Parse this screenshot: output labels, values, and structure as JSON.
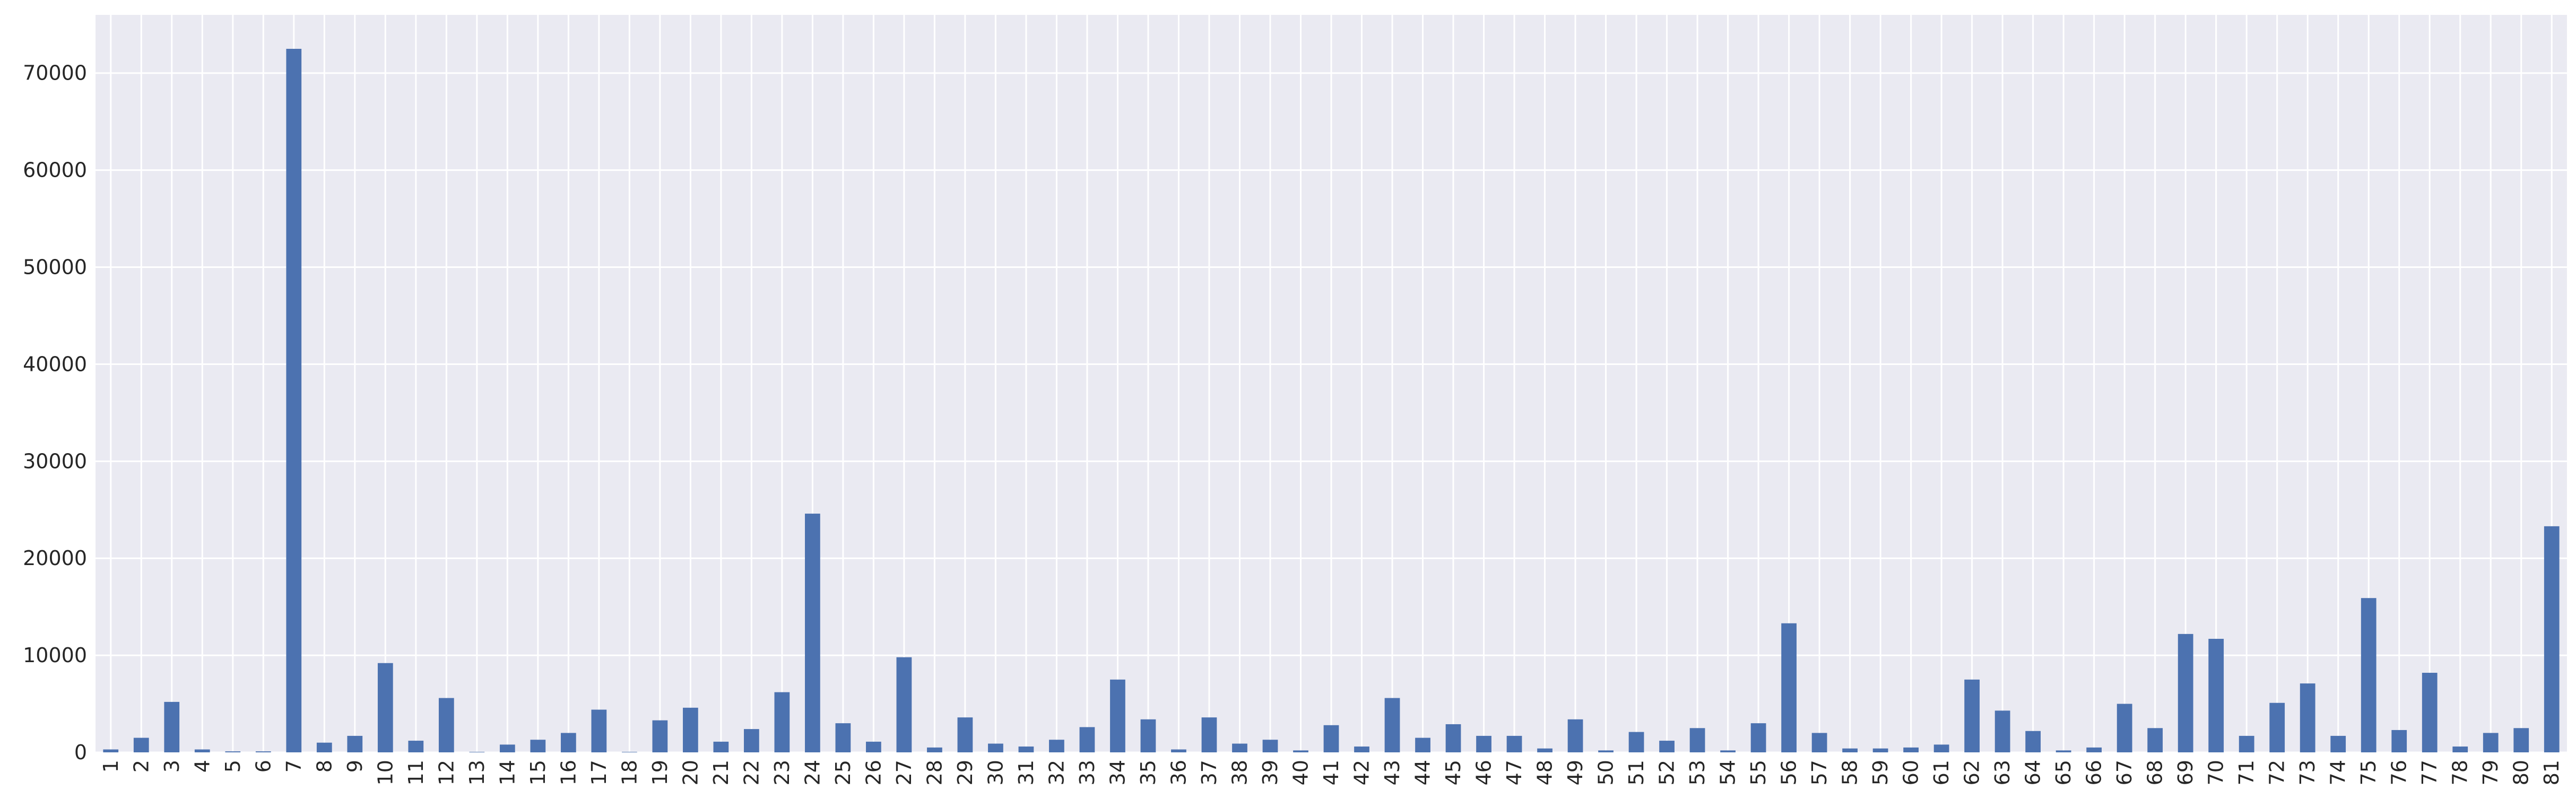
{
  "chart_data": {
    "type": "bar",
    "title": "",
    "xlabel": "",
    "ylabel": "",
    "categories": [
      "1",
      "2",
      "3",
      "4",
      "5",
      "6",
      "7",
      "8",
      "9",
      "10",
      "11",
      "12",
      "13",
      "14",
      "15",
      "16",
      "17",
      "18",
      "19",
      "20",
      "21",
      "22",
      "23",
      "24",
      "25",
      "26",
      "27",
      "28",
      "29",
      "30",
      "31",
      "32",
      "33",
      "34",
      "35",
      "36",
      "37",
      "38",
      "39",
      "40",
      "41",
      "42",
      "43",
      "44",
      "45",
      "46",
      "47",
      "48",
      "49",
      "50",
      "51",
      "52",
      "53",
      "54",
      "55",
      "56",
      "57",
      "58",
      "59",
      "60",
      "61",
      "62",
      "63",
      "64",
      "65",
      "66",
      "67",
      "68",
      "69",
      "70",
      "71",
      "72",
      "73",
      "74",
      "75",
      "76",
      "77",
      "78",
      "79",
      "80",
      "81"
    ],
    "values": [
      300,
      1500,
      5200,
      300,
      100,
      100,
      72500,
      1000,
      1700,
      9200,
      1200,
      5600,
      50,
      800,
      1300,
      2000,
      4400,
      50,
      3300,
      4600,
      1100,
      2400,
      6200,
      24600,
      3000,
      1100,
      9800,
      500,
      3600,
      900,
      600,
      1300,
      2600,
      7500,
      3400,
      300,
      3600,
      900,
      1300,
      200,
      2800,
      600,
      5600,
      1500,
      2900,
      1700,
      1700,
      400,
      3400,
      200,
      2100,
      1200,
      2500,
      200,
      3000,
      13300,
      2000,
      400,
      400,
      500,
      800,
      7500,
      4300,
      2200,
      200,
      500,
      5000,
      2500,
      12200,
      11700,
      1700,
      5100,
      7100,
      1700,
      15900,
      2300,
      8200,
      600,
      2000,
      2500,
      23300
    ],
    "ylim": [
      0,
      76000
    ],
    "yticks": [
      0,
      10000,
      20000,
      30000,
      40000,
      50000,
      60000,
      70000
    ],
    "grid": true,
    "legend": "none",
    "colors": {
      "bar": "#4c72b0",
      "background": "#eaeaf2",
      "grid": "#ffffff",
      "text": "#262626"
    }
  }
}
